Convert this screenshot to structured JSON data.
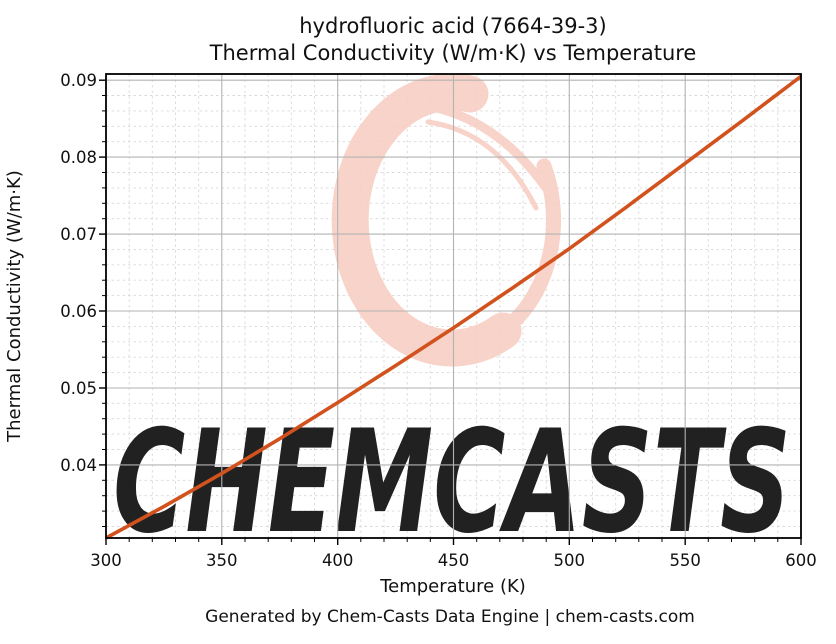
{
  "page": {
    "footer": "Generated by Chem-Casts Data Engine | chem-casts.com",
    "footer_color": "#595959",
    "background": "#ffffff"
  },
  "watermark": {
    "text": "CHEMCASTS",
    "logo": "brush-circle-logo",
    "color": "#f8d0c5"
  },
  "chart_data": {
    "type": "line",
    "title_line1": "hydrofluoric acid (7664-39-3)",
    "title_line2": "Thermal Conductivity (W/m·K) vs Temperature",
    "xlabel": "Temperature (K)",
    "ylabel": "Thermal Conductivity (W/m·K)",
    "xlim": [
      300,
      600
    ],
    "ylim": [
      0.0305,
      0.0908
    ],
    "x_major_ticks": [
      300,
      350,
      400,
      450,
      500,
      550,
      600
    ],
    "x_minor_step": 10,
    "y_major_ticks": [
      0.04,
      0.05,
      0.06,
      0.07,
      0.08,
      0.09
    ],
    "y_minor_step": 0.002,
    "grid": true,
    "legend": false,
    "line_color": "#d2521e",
    "line_width": 3.6,
    "axis_color": "#000000",
    "major_grid_color": "#b3b3b3",
    "minor_grid_color": "#d9d9d9",
    "series": [
      {
        "name": "thermal-conductivity-vs-temperature",
        "x": [
          300,
          325,
          350,
          375,
          400,
          425,
          450,
          475,
          500,
          525,
          550,
          575,
          600
        ],
        "y": [
          0.0305,
          0.0346,
          0.0389,
          0.0434,
          0.0481,
          0.0529,
          0.0578,
          0.0629,
          0.0681,
          0.0736,
          0.0792,
          0.0848,
          0.0905
        ]
      }
    ]
  }
}
